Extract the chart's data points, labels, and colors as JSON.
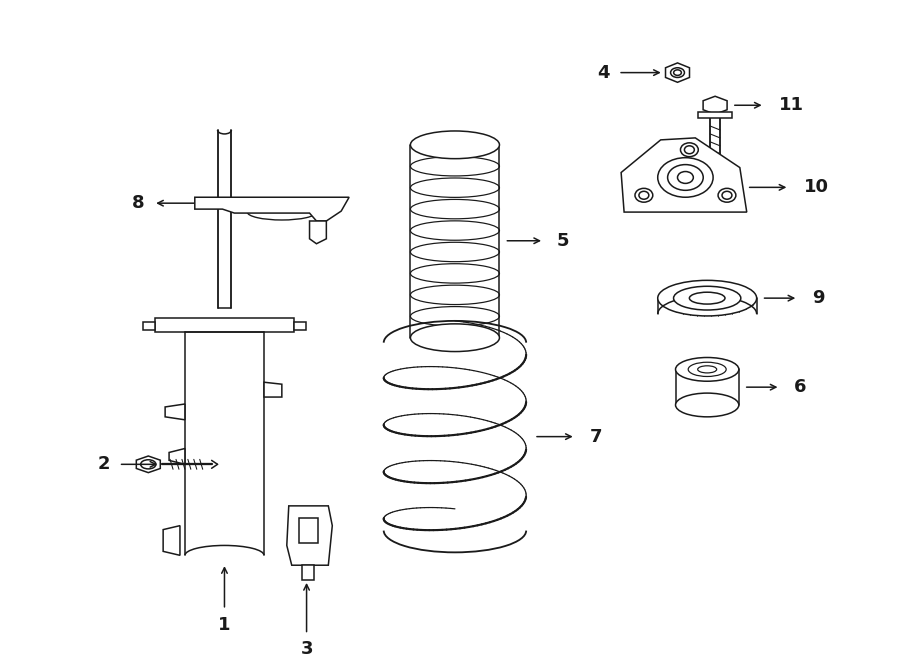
{
  "bg_color": "#ffffff",
  "line_color": "#1a1a1a",
  "lw": 1.1,
  "fig_w": 9.0,
  "fig_h": 6.61,
  "dpi": 100
}
